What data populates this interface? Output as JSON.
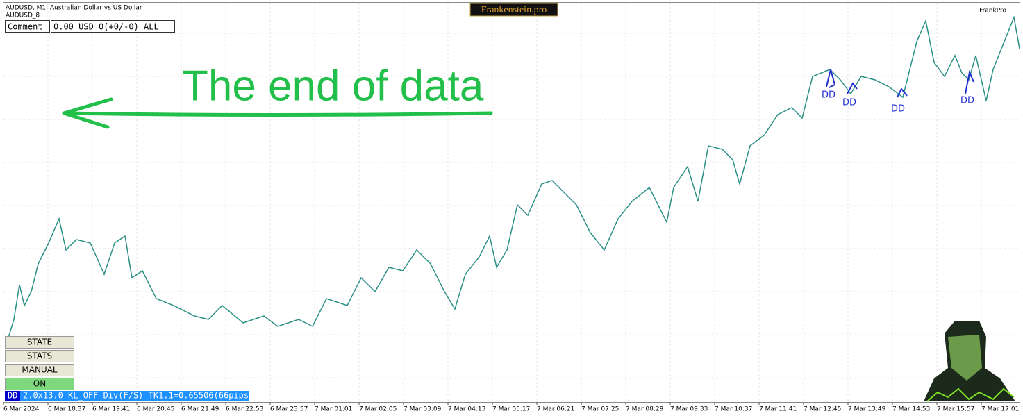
{
  "header": {
    "symbol_line": "AUDUSD, M1:  Australian Dollar vs US Dollar",
    "name": "AUDUSD_8",
    "brand": "Frankenstein.pro",
    "corner": "FrankPro"
  },
  "info_bar": [
    "Comment",
    "0.00 USD 0(+0/-0) ALL"
  ],
  "annotation": "The end of data",
  "markers": [
    "DD",
    "DD",
    "DD",
    "DD"
  ],
  "buttons": [
    "STATE",
    "STATS",
    "MANUAL",
    "ON"
  ],
  "status": {
    "tag": "DD",
    "text": "2.0x13.0 KL_OFF Div(F/S) TK1.1=0.65506(66pips)"
  },
  "time_axis": [
    "6 Mar 2024",
    "6 Mar 18:37",
    "6 Mar 19:41",
    "6 Mar 20:45",
    "6 Mar 21:49",
    "6 Mar 22:53",
    "6 Mar 23:57",
    "7 Mar 01:01",
    "7 Mar 02:05",
    "7 Mar 03:09",
    "7 Mar 04:13",
    "7 Mar 05:17",
    "7 Mar 06:21",
    "7 Mar 07:25",
    "7 Mar 08:29",
    "7 Mar 09:33",
    "7 Mar 10:37",
    "7 Mar 11:41",
    "7 Mar 12:45",
    "7 Mar 13:49",
    "7 Mar 14:53",
    "7 Mar 15:57",
    "7 Mar 17:01"
  ]
}
